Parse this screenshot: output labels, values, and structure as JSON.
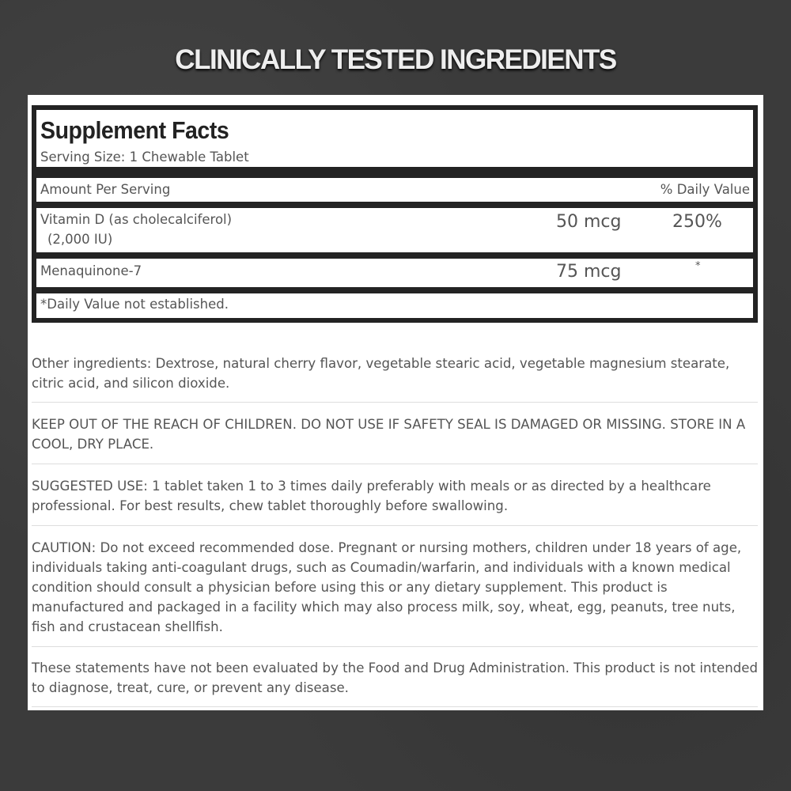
{
  "banner": {
    "title": "CLINICALLY TESTED INGREDIENTS"
  },
  "facts": {
    "title": "Supplement Facts",
    "serving_size": "Serving Size: 1 Chewable Tablet",
    "amount_header": "Amount Per Serving",
    "dv_header": "% Daily Value",
    "rows": [
      {
        "name": "Vitamin D (as cholecalciferol)",
        "sub": "(2,000 IU)",
        "amount": "50 mcg",
        "dv": "250%"
      },
      {
        "name": "Menaquinone-7",
        "amount": "75 mcg",
        "dv": "*"
      }
    ],
    "footnote": "*Daily Value not established."
  },
  "sections": [
    "Other ingredients: Dextrose, natural cherry flavor, vegetable stearic acid, vegetable magnesium stearate, citric acid, and silicon dioxide.",
    "KEEP OUT OF THE REACH OF CHILDREN. DO NOT USE IF SAFETY SEAL IS DAMAGED OR MISSING. STORE IN A COOL, DRY PLACE.",
    "SUGGESTED USE: 1 tablet taken 1 to 3 times daily preferably with meals or as directed by a healthcare professional. For best results, chew tablet thoroughly before swallowing.",
    "CAUTION: Do not exceed recommended dose. Pregnant or nursing mothers, children under 18 years of age, individuals taking anti-coagulant drugs, such as Coumadin/warfarin, and individuals with a known medical condition should consult a physician before using this or any dietary supplement. This product is manufactured and packaged in a facility which may also process milk, soy, wheat, egg, peanuts, tree nuts, fish and crustacean shellfish.",
    "These statements have not been evaluated by the Food and Drug Administration. This product is not intended to diagnose, treat, cure, or prevent any disease."
  ]
}
